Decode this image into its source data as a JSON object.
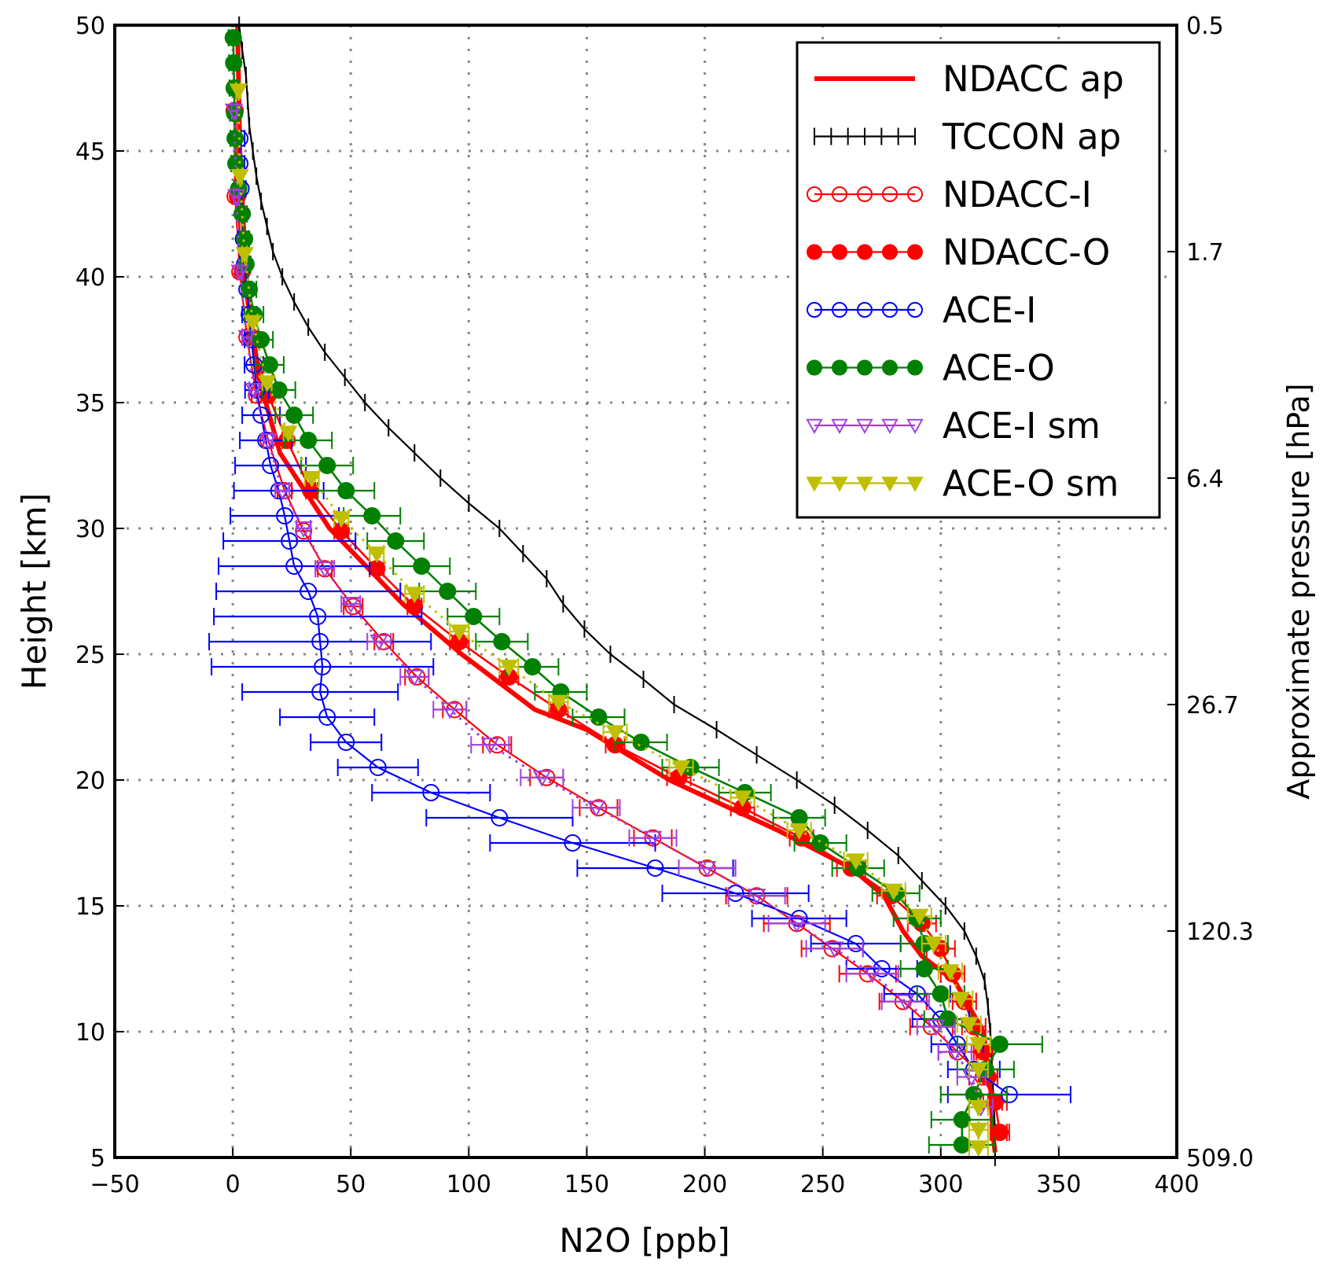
{
  "chart_data": {
    "type": "line",
    "xlabel": "N2O [ppb]",
    "ylabel": "Height [km]",
    "y2label": "Approximate pressure [hPa]",
    "xlim": [
      -50,
      400
    ],
    "ylim": [
      5,
      50
    ],
    "xticks": [
      -50,
      0,
      50,
      100,
      150,
      200,
      250,
      300,
      350,
      400
    ],
    "yticks": [
      5,
      10,
      15,
      20,
      25,
      30,
      35,
      40,
      45,
      50
    ],
    "y2ticks": [
      {
        "height": 50,
        "label": "0.5"
      },
      {
        "height": 41,
        "label": "1.7"
      },
      {
        "height": 32,
        "label": "6.4"
      },
      {
        "height": 23,
        "label": "26.7"
      },
      {
        "height": 14,
        "label": "120.3"
      },
      {
        "height": 5,
        "label": "509.0"
      }
    ],
    "grid": true,
    "legend_position": "top-right",
    "series": [
      {
        "name": "NDACC ap",
        "color": "#ff0000",
        "style": "thick",
        "h": [
          5.2,
          6,
          8,
          10,
          12,
          13,
          14,
          15.4,
          16.5,
          18,
          20,
          22,
          22.8,
          25,
          27,
          30,
          33,
          36,
          40,
          45,
          50
        ],
        "x": [
          323,
          322,
          321,
          318,
          306,
          292,
          284,
          276,
          262,
          231,
          185,
          150,
          128,
          97,
          72,
          41,
          20,
          11,
          5.6,
          3,
          2
        ]
      },
      {
        "name": "TCCON ap",
        "color": "#000000",
        "style": "tick",
        "h": [
          5,
          6,
          7,
          8,
          9,
          10,
          11,
          12,
          13,
          14,
          15,
          16,
          17,
          18,
          19,
          20,
          21,
          22,
          23,
          24,
          25,
          26,
          27,
          28,
          29,
          30,
          31,
          32,
          33,
          34,
          35,
          36,
          37,
          38,
          39,
          40,
          41,
          42,
          43,
          44,
          45,
          46,
          47,
          48,
          49,
          50
        ],
        "x": [
          323,
          323,
          322.5,
          322,
          321.5,
          321,
          320,
          318.6,
          315,
          310,
          302,
          292,
          282,
          269,
          255,
          239,
          222,
          205,
          187,
          174,
          160,
          149,
          140,
          133,
          123,
          113,
          100,
          88,
          77,
          66,
          56,
          47.5,
          39,
          32,
          26,
          21,
          17,
          14.5,
          12,
          10,
          8.5,
          7,
          6.3,
          5.6,
          4,
          2.7
        ]
      },
      {
        "name": "NDACC-I",
        "color": "#ff0000",
        "style": "open-circle",
        "h": [
          6,
          7.2,
          8.2,
          9.2,
          10.2,
          11.2,
          12.3,
          13.3,
          14.3,
          15.4,
          16.5,
          17.7,
          18.9,
          20.1,
          21.4,
          22.8,
          24.1,
          25.5,
          26.9,
          28.4,
          29.9,
          31.5,
          33.5,
          35.3,
          37.6,
          40.2,
          43.2,
          46.6
        ],
        "x": [
          325,
          323,
          318,
          307,
          296,
          284,
          269,
          254,
          239,
          222,
          201,
          178,
          155,
          133,
          112,
          94,
          78,
          64,
          51,
          39,
          30,
          22,
          15,
          10,
          6,
          3,
          1,
          0.6
        ],
        "err": [
          4,
          5,
          6,
          8,
          9,
          10,
          12,
          13,
          14,
          13,
          12,
          8,
          8,
          7,
          6,
          5,
          5,
          4,
          4,
          3,
          3,
          3,
          2,
          2,
          2,
          1,
          1,
          1
        ]
      },
      {
        "name": "NDACC-O",
        "color": "#ff0000",
        "style": "filled-circle",
        "h": [
          6,
          7.2,
          8.2,
          9.2,
          10.2,
          11.2,
          12.3,
          13.3,
          14.3,
          15.4,
          16.5,
          17.7,
          18.9,
          20.1,
          21.4,
          22.8,
          24.1,
          25.5,
          26.9,
          28.4,
          29.9,
          31.5,
          33.5,
          35.3,
          37.6,
          40.2,
          43.2,
          46.6
        ],
        "x": [
          325,
          323,
          320,
          318,
          314,
          310,
          305,
          300,
          292,
          279,
          262,
          241,
          216,
          189,
          162,
          138,
          117,
          96,
          77,
          61,
          46,
          33,
          23,
          15,
          8,
          4,
          2,
          1
        ],
        "err": [
          3,
          3,
          4,
          4,
          5,
          5,
          5,
          6,
          6,
          6,
          6,
          5,
          5,
          5,
          4,
          4,
          4,
          4,
          3,
          3,
          3,
          2,
          2,
          2,
          1,
          1,
          1,
          1
        ]
      },
      {
        "name": "ACE-I",
        "color": "#0000ff",
        "style": "open-circle",
        "h": [
          7.5,
          8.5,
          9.5,
          10.5,
          11.5,
          12.5,
          13.5,
          14.5,
          15.5,
          16.5,
          17.5,
          18.5,
          19.5,
          20.5,
          21.5,
          22.5,
          23.5,
          24.5,
          25.5,
          26.5,
          27.5,
          28.5,
          29.5,
          30.5,
          31.5,
          32.5,
          33.5,
          34.5,
          35.5,
          36.5,
          37.5,
          38.5,
          39.5,
          40.5,
          41.5,
          42.5,
          43.5,
          44.5,
          45.5
        ],
        "x": [
          329,
          314,
          307,
          300,
          290,
          275,
          264,
          240,
          213,
          179,
          144,
          113,
          84,
          61.5,
          48,
          40,
          37,
          38,
          37,
          36,
          32,
          26,
          24,
          22,
          19.5,
          16,
          14,
          12,
          10.2,
          9,
          8,
          7,
          6,
          5,
          4.5,
          4,
          3.5,
          3,
          3
        ],
        "err": [
          26,
          11,
          11,
          12,
          14,
          15,
          19,
          20,
          31,
          33,
          35,
          31,
          25,
          17,
          15,
          20,
          33,
          47,
          47,
          44,
          39,
          32,
          28,
          23,
          19,
          15,
          11,
          8,
          5,
          4,
          3,
          3,
          2,
          2,
          2,
          2,
          2,
          2,
          2
        ]
      },
      {
        "name": "ACE-O",
        "color": "#008000",
        "style": "filled-circle",
        "h": [
          5.5,
          6.5,
          7.5,
          8.5,
          9.5,
          10.5,
          11.5,
          12.5,
          13.5,
          14.5,
          15.5,
          16.5,
          17.5,
          18.5,
          19.5,
          20.5,
          21.5,
          22.5,
          23.5,
          24.5,
          25.5,
          26.5,
          27.5,
          28.5,
          29.5,
          30.5,
          31.5,
          32.5,
          33.5,
          34.5,
          35.5,
          36.5,
          37.5,
          38.5,
          39.5,
          40.5,
          41.5,
          42.5,
          43.5,
          44.5,
          45.5,
          46.5,
          47.5,
          48.5,
          49.5
        ],
        "x": [
          309,
          309,
          314,
          319,
          325,
          303,
          300,
          293,
          293,
          290,
          281,
          265,
          249,
          240,
          217,
          194,
          173,
          155,
          139,
          127,
          114,
          102,
          91,
          80,
          69,
          59,
          48,
          40,
          32,
          26,
          19.5,
          15.6,
          12,
          9,
          7,
          5.6,
          5,
          4,
          2.5,
          1.3,
          1,
          0.8,
          0.6,
          0.4,
          0.2
        ],
        "err": [
          14,
          13,
          14,
          12,
          18,
          10,
          10,
          10,
          10,
          10,
          10,
          11,
          11,
          11,
          11,
          12,
          11,
          11,
          11,
          11,
          11,
          11,
          12,
          12,
          12,
          12,
          12,
          11,
          10,
          8,
          7,
          6,
          5,
          4,
          3,
          2,
          2,
          2,
          2,
          2,
          2,
          2,
          2,
          2,
          2
        ]
      },
      {
        "name": "ACE-I sm",
        "color": "#a040e0",
        "style": "open-triangle",
        "h": [
          7,
          8.2,
          9.2,
          10.2,
          11.2,
          12.3,
          13.3,
          14.3,
          15.4,
          16.5,
          17.7,
          18.9,
          20.1,
          21.4,
          22.8,
          24.1,
          25.5,
          27,
          28.4,
          30,
          31.5,
          33.5,
          35.5,
          37.6,
          40.2,
          43.2,
          46.6
        ],
        "x": [
          317,
          313,
          306,
          298,
          285,
          271,
          255,
          239,
          222,
          201,
          178,
          154,
          131,
          109,
          92,
          77,
          62,
          50,
          39,
          30,
          21,
          15,
          9,
          6,
          3,
          1.5,
          0.5
        ],
        "err": [
          5,
          6,
          7,
          8,
          10,
          11,
          12,
          12,
          12,
          12,
          10,
          10,
          9,
          8,
          7,
          6,
          5,
          4,
          4,
          3,
          3,
          2,
          2,
          2,
          1,
          1,
          1
        ]
      },
      {
        "name": "ACE-O sm",
        "color": "#bfbf00",
        "style": "filled-triangle",
        "h": [
          5.4,
          6.1,
          7,
          8.5,
          9.5,
          10.3,
          11.3,
          12.4,
          13.5,
          14.6,
          15.6,
          16.8,
          18,
          19.3,
          20.5,
          21.9,
          23.1,
          24.5,
          25.9,
          27.4,
          29,
          30.4,
          32,
          33.8,
          35.8,
          38.2,
          40.9,
          44,
          47.4
        ],
        "x": [
          316,
          316,
          316,
          316,
          316,
          312,
          308.5,
          304,
          297,
          291,
          280,
          264,
          240,
          216,
          190,
          162,
          138,
          117,
          96,
          77,
          61,
          46,
          33.5,
          23.5,
          14.5,
          8.5,
          5,
          3,
          2.4
        ],
        "err": [
          4,
          4,
          4,
          4,
          5,
          5,
          5,
          5,
          5,
          5,
          5,
          5,
          5,
          5,
          5,
          5,
          4,
          4,
          4,
          4,
          3,
          3,
          3,
          2,
          2,
          2,
          1,
          1,
          1
        ]
      }
    ]
  }
}
